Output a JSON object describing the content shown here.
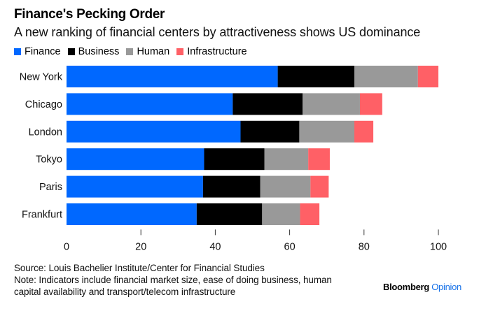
{
  "header": {
    "title": "Finance's Pecking Order",
    "subtitle": "A new ranking of financial centers by attractiveness shows US dominance"
  },
  "footer": {
    "source": "Source: Louis Bachelier Institute/Center for Financial Studies",
    "note_line1": "Note: Indicators include financial market size, ease of doing business, human",
    "note_line2": "capital availability and transport/telecom infrastructure",
    "brand": "Bloomberg",
    "brand_suffix": "Opinion"
  },
  "chart_data": {
    "type": "bar",
    "orientation": "horizontal",
    "stacked": true,
    "title": "Finance's Pecking Order",
    "subtitle": "A new ranking of financial centers by attractiveness shows US dominance",
    "xlabel": "",
    "ylabel": "",
    "xlim": [
      0,
      100
    ],
    "xticks": [
      0,
      20,
      40,
      60,
      80,
      100
    ],
    "grid": false,
    "legend_position": "top-left",
    "categories": [
      "New York",
      "Chicago",
      "London",
      "Tokyo",
      "Paris",
      "Frankfurt"
    ],
    "series": [
      {
        "name": "Finance",
        "color": "#0068ff",
        "values": [
          56.8,
          44.7,
          46.8,
          37.0,
          36.7,
          35.0
        ]
      },
      {
        "name": "Business",
        "color": "#000000",
        "values": [
          20.6,
          18.8,
          15.8,
          16.2,
          15.4,
          17.6
        ]
      },
      {
        "name": "Human",
        "color": "#999999",
        "values": [
          17.1,
          15.4,
          14.8,
          11.8,
          13.5,
          10.2
        ]
      },
      {
        "name": "Infrastructure",
        "color": "#ff6066",
        "values": [
          5.5,
          6.0,
          5.1,
          5.8,
          4.9,
          5.2
        ]
      }
    ]
  }
}
